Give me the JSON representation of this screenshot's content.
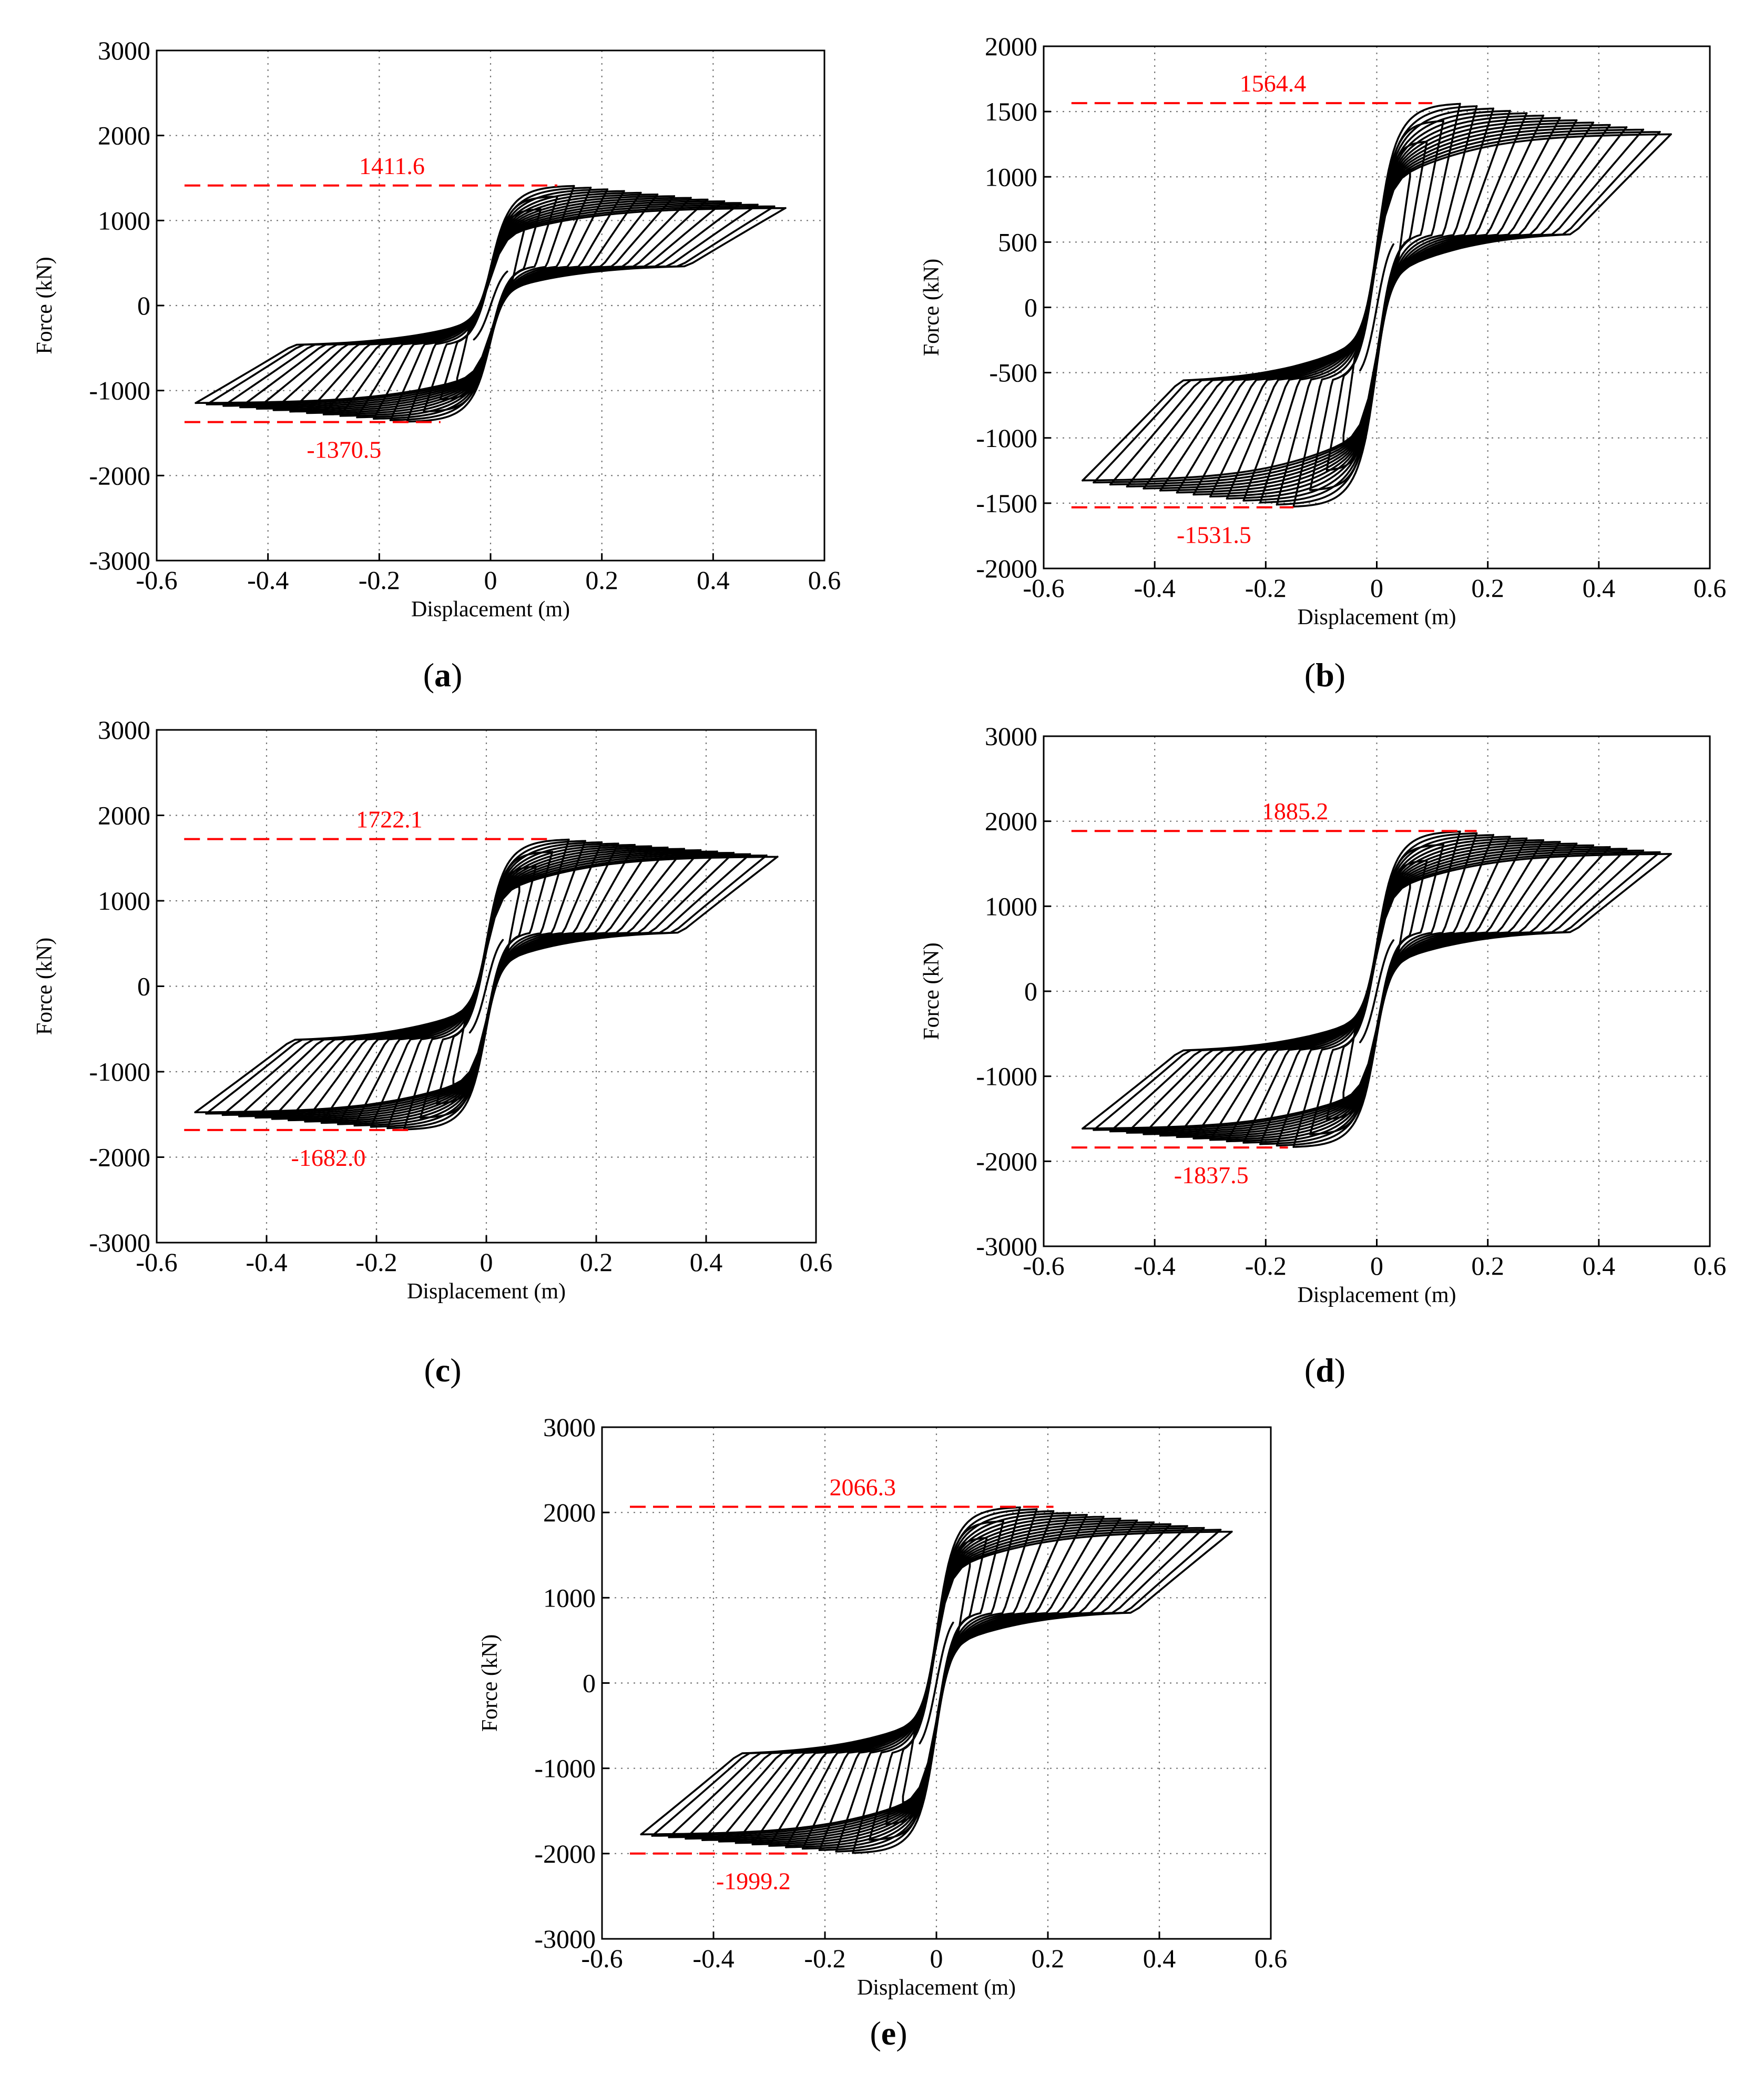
{
  "chart_data": [
    {
      "type": "line",
      "panel_label": "a",
      "xlabel": "Displacement (m)",
      "ylabel": "Force (kN)",
      "xlim": [
        -0.6,
        0.6
      ],
      "ylim": [
        -3000,
        3000
      ],
      "xticks": [
        "-0.6",
        "-0.4",
        "-0.2",
        "0",
        "0.2",
        "0.4",
        "0.6"
      ],
      "yticks": [
        "3000",
        "2000",
        "1000",
        "0",
        "-1000",
        "-2000",
        "-3000"
      ],
      "grid": true,
      "series": [
        {
          "name": "hysteresis",
          "amplitudes": [
            0.03,
            0.06,
            0.09,
            0.12,
            0.15,
            0.18,
            0.21,
            0.24,
            0.27,
            0.3,
            0.33,
            0.36,
            0.39,
            0.42,
            0.45,
            0.48,
            0.51,
            0.53
          ],
          "pos_peak": 1411.6,
          "neg_peak": -1370.5,
          "pos_final": 1150,
          "neg_final": -1150,
          "pinch_force": 480
        }
      ],
      "annotations": [
        {
          "text": "1411.6",
          "value": 1411.6,
          "x_from": -0.55,
          "x_to": 0.12
        },
        {
          "text": "-1370.5",
          "value": -1370.5,
          "x_from": -0.55,
          "x_to": -0.09
        }
      ]
    },
    {
      "type": "line",
      "panel_label": "b",
      "xlabel": "Displacement (m)",
      "ylabel": "Force (kN)",
      "xlim": [
        -0.6,
        0.6
      ],
      "ylim": [
        -2000,
        2000
      ],
      "xticks": [
        "-0.6",
        "-0.4",
        "-0.2",
        "0",
        "0.2",
        "0.4",
        "0.6"
      ],
      "yticks": [
        "2000",
        "1500",
        "1000",
        "500",
        "0",
        "-500",
        "-1000",
        "-1500",
        "-2000"
      ],
      "grid": true,
      "series": [
        {
          "name": "hysteresis",
          "amplitudes": [
            0.03,
            0.06,
            0.09,
            0.12,
            0.15,
            0.18,
            0.21,
            0.24,
            0.27,
            0.3,
            0.33,
            0.36,
            0.39,
            0.42,
            0.45,
            0.48,
            0.51,
            0.53
          ],
          "pos_peak": 1564.4,
          "neg_peak": -1531.5,
          "pos_final": 1330,
          "neg_final": -1330,
          "pinch_force": 580
        }
      ],
      "annotations": [
        {
          "text": "1564.4",
          "value": 1564.4,
          "x_from": -0.55,
          "x_to": 0.1
        },
        {
          "text": "-1531.5",
          "value": -1531.5,
          "x_from": -0.55,
          "x_to": -0.15
        }
      ]
    },
    {
      "type": "line",
      "panel_label": "c",
      "xlabel": "Displacement (m)",
      "ylabel": "Force (kN)",
      "xlim": [
        -0.6,
        0.6
      ],
      "ylim": [
        -3000,
        3000
      ],
      "xticks": [
        "-0.6",
        "-0.4",
        "-0.2",
        "0",
        "0.2",
        "0.4",
        "0.6"
      ],
      "yticks": [
        "3000",
        "2000",
        "1000",
        "0",
        "-1000",
        "-2000",
        "-3000"
      ],
      "grid": true,
      "series": [
        {
          "name": "hysteresis",
          "amplitudes": [
            0.03,
            0.06,
            0.09,
            0.12,
            0.15,
            0.18,
            0.21,
            0.24,
            0.27,
            0.3,
            0.33,
            0.36,
            0.39,
            0.42,
            0.45,
            0.48,
            0.51,
            0.53
          ],
          "pos_peak": 1722.1,
          "neg_peak": -1682.0,
          "pos_final": 1520,
          "neg_final": -1480,
          "pinch_force": 650
        }
      ],
      "annotations": [
        {
          "text": "1722.1",
          "value": 1722.1,
          "x_from": -0.55,
          "x_to": 0.12
        },
        {
          "text": "-1682.0",
          "value": -1682.0,
          "x_from": -0.55,
          "x_to": -0.14
        }
      ]
    },
    {
      "type": "line",
      "panel_label": "d",
      "xlabel": "Displacement (m)",
      "ylabel": "Force (kN)",
      "xlim": [
        -0.6,
        0.6
      ],
      "ylim": [
        -3000,
        3000
      ],
      "xticks": [
        "-0.6",
        "-0.4",
        "-0.2",
        "0",
        "0.2",
        "0.4",
        "0.6"
      ],
      "yticks": [
        "3000",
        "2000",
        "1000",
        "0",
        "-1000",
        "-2000",
        "-3000"
      ],
      "grid": true,
      "series": [
        {
          "name": "hysteresis",
          "amplitudes": [
            0.03,
            0.06,
            0.09,
            0.12,
            0.15,
            0.18,
            0.21,
            0.24,
            0.27,
            0.3,
            0.33,
            0.36,
            0.39,
            0.42,
            0.45,
            0.48,
            0.51,
            0.53
          ],
          "pos_peak": 1885.2,
          "neg_peak": -1837.5,
          "pos_final": 1620,
          "neg_final": -1620,
          "pinch_force": 720
        }
      ],
      "annotations": [
        {
          "text": "1885.2",
          "value": 1885.2,
          "x_from": -0.55,
          "x_to": 0.18
        },
        {
          "text": "-1837.5",
          "value": -1837.5,
          "x_from": -0.55,
          "x_to": -0.16
        }
      ]
    },
    {
      "type": "line",
      "panel_label": "e",
      "xlabel": "Displacement (m)",
      "ylabel": "Force (kN)",
      "xlim": [
        -0.6,
        0.6
      ],
      "ylim": [
        -3000,
        3000
      ],
      "xticks": [
        "-0.6",
        "-0.4",
        "-0.2",
        "0",
        "0.2",
        "0.4",
        "0.6"
      ],
      "yticks": [
        "3000",
        "2000",
        "1000",
        "0",
        "-1000",
        "-2000",
        "-3000"
      ],
      "grid": true,
      "series": [
        {
          "name": "hysteresis",
          "amplitudes": [
            0.03,
            0.06,
            0.09,
            0.12,
            0.15,
            0.18,
            0.21,
            0.24,
            0.27,
            0.3,
            0.33,
            0.36,
            0.39,
            0.42,
            0.45,
            0.48,
            0.51,
            0.53
          ],
          "pos_peak": 2066.3,
          "neg_peak": -1999.2,
          "pos_final": 1780,
          "neg_final": -1780,
          "pinch_force": 850
        }
      ],
      "annotations": [
        {
          "text": "2066.3",
          "value": 2066.3,
          "x_from": -0.55,
          "x_to": 0.21
        },
        {
          "text": "-1999.2",
          "value": -1999.2,
          "x_from": -0.55,
          "x_to": -0.22
        }
      ]
    }
  ]
}
